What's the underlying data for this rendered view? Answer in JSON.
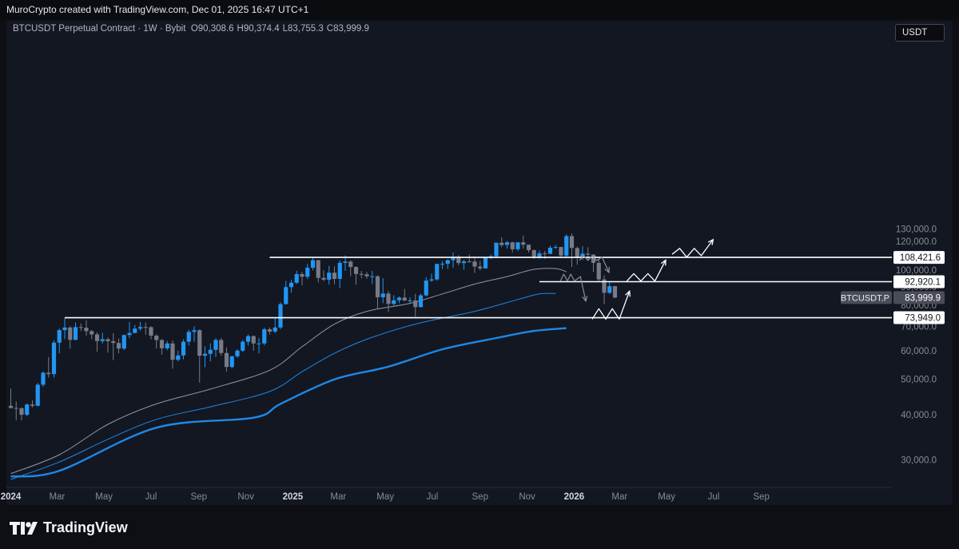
{
  "header": {
    "credit": "MuroCrypto created with TradingView.com, Dec 01, 2025 16:47 UTC+1"
  },
  "legend": {
    "symbol": "BTCUSDT Perpetual Contract · 1W · Bybit",
    "open": "O90,308.6",
    "high": "H90,374.4",
    "low": "L83,755.3",
    "close": "C83,999.9"
  },
  "unit_button": "USDT",
  "brand": "TradingView",
  "colors": {
    "bg": "#131722",
    "up": "#2196f3",
    "down": "#787b86",
    "ma_gray": "#9598a1",
    "ma_blue": "#1e88e5",
    "levels": "#ffffff"
  },
  "chart_data": {
    "type": "candlestick",
    "timeframe": "1W",
    "y_axis": {
      "ylim": [
        25000,
        137000
      ],
      "ticks": [
        "130,000.0",
        "120,000.0",
        "110,000.0",
        "100,000.0",
        "90,000.0",
        "80,000.0",
        "70,000.0",
        "60,000.0",
        "50,000.0",
        "40,000.0",
        "30,000.0"
      ],
      "tick_values": [
        130000,
        120000,
        110000,
        100000,
        90000,
        80000,
        70000,
        60000,
        50000,
        40000,
        30000
      ]
    },
    "x_axis": {
      "ticks": [
        "2024",
        "Mar",
        "May",
        "Jul",
        "Sep",
        "Nov",
        "2025",
        "Mar",
        "May",
        "Jul",
        "Sep",
        "Nov",
        "2026",
        "Mar",
        "May",
        "Jul",
        "Sep"
      ],
      "tick_dates": [
        "2024-01-01",
        "2024-03-01",
        "2024-05-01",
        "2024-07-01",
        "2024-09-01",
        "2024-11-01",
        "2025-01-01",
        "2025-03-01",
        "2025-05-01",
        "2025-07-01",
        "2025-09-01",
        "2025-11-01",
        "2026-01-01",
        "2026-03-01",
        "2026-05-01",
        "2026-07-01",
        "2026-09-01"
      ],
      "bold": [
        "2024",
        "2025",
        "2026"
      ]
    },
    "price_label": {
      "text": "BTCUSDT.P",
      "value": 83999.9,
      "value_text": "83,999.9"
    },
    "levels": [
      {
        "value": 108421.6,
        "label": "108,421.6",
        "from": "2024-12-02"
      },
      {
        "value": 92920.1,
        "label": "92,920.1",
        "from": "2025-11-17"
      },
      {
        "value": 73949.0,
        "label": "73,949.0",
        "from": "2024-03-11"
      }
    ],
    "candles_start": "2024-01-01",
    "candles": [
      [
        42283,
        47185,
        41550,
        41711
      ],
      [
        41711,
        43473,
        38600,
        41637
      ],
      [
        41637,
        41860,
        38555,
        39940
      ],
      [
        39940,
        42918,
        39560,
        42626
      ],
      [
        42626,
        43762,
        41880,
        42290
      ],
      [
        42290,
        48890,
        42165,
        48343
      ],
      [
        48343,
        52549,
        47672,
        52138
      ],
      [
        52138,
        57600,
        50600,
        51700
      ],
      [
        51700,
        64000,
        50560,
        63115
      ],
      [
        63115,
        69000,
        59000,
        68350
      ],
      [
        68350,
        73800,
        64500,
        69500
      ],
      [
        69500,
        70000,
        60760,
        64250
      ],
      [
        64250,
        71700,
        64100,
        69650
      ],
      [
        69650,
        71300,
        67900,
        69380
      ],
      [
        69380,
        72800,
        66000,
        67900
      ],
      [
        67900,
        68400,
        64500,
        66500
      ],
      [
        66500,
        67450,
        59600,
        63750
      ],
      [
        63750,
        67200,
        62800,
        64500
      ],
      [
        64500,
        65250,
        59200,
        63700
      ],
      [
        63700,
        67000,
        56500,
        63000
      ],
      [
        63000,
        64800,
        59000,
        60800
      ],
      [
        60800,
        66400,
        60200,
        66250
      ],
      [
        66250,
        71980,
        64900,
        67100
      ],
      [
        67100,
        70600,
        67000,
        69000
      ],
      [
        69000,
        72000,
        68100,
        69700
      ],
      [
        69700,
        71700,
        66400,
        69650
      ],
      [
        69650,
        70000,
        64500,
        66000
      ],
      [
        66000,
        66500,
        60800,
        64200
      ],
      [
        64200,
        64600,
        58500,
        60900
      ],
      [
        60900,
        63800,
        60200,
        62800
      ],
      [
        62800,
        64000,
        53500,
        56600
      ],
      [
        56600,
        60000,
        56000,
        58200
      ],
      [
        58200,
        64500,
        56800,
        63500
      ],
      [
        63500,
        68500,
        62000,
        67600
      ],
      [
        67600,
        70000,
        63500,
        68300
      ],
      [
        68300,
        68700,
        49000,
        58100
      ],
      [
        58100,
        61700,
        54000,
        58800
      ],
      [
        58800,
        62800,
        56100,
        60300
      ],
      [
        60300,
        64900,
        57700,
        64200
      ],
      [
        64200,
        65000,
        58100,
        59100
      ],
      [
        59100,
        61200,
        52500,
        54100
      ],
      [
        54100,
        58000,
        53600,
        57900
      ],
      [
        57900,
        60600,
        57300,
        60000
      ],
      [
        60000,
        64200,
        59400,
        63500
      ],
      [
        63500,
        66500,
        62000,
        65800
      ],
      [
        65800,
        66100,
        60000,
        62800
      ],
      [
        62800,
        65000,
        58900,
        62800
      ],
      [
        62800,
        69400,
        62000,
        68700
      ],
      [
        68700,
        69500,
        66500,
        67700
      ],
      [
        67700,
        73600,
        67100,
        69500
      ],
      [
        69500,
        81500,
        68800,
        80600
      ],
      [
        80600,
        93500,
        80400,
        89800
      ],
      [
        89800,
        94000,
        86600,
        92300
      ],
      [
        92300,
        99600,
        91600,
        97500
      ],
      [
        97500,
        98900,
        90800,
        95900
      ],
      [
        95900,
        104000,
        94500,
        101500
      ],
      [
        101500,
        108400,
        99800,
        106500
      ],
      [
        106500,
        106800,
        92500,
        95200
      ],
      [
        95200,
        99800,
        93200,
        94100
      ],
      [
        94100,
        102700,
        91200,
        98400
      ],
      [
        98400,
        102400,
        91500,
        94600
      ],
      [
        94600,
        106400,
        89200,
        104700
      ],
      [
        104700,
        109800,
        99500,
        105600
      ],
      [
        105600,
        106400,
        96200,
        102000
      ],
      [
        102000,
        102500,
        91200,
        97600
      ],
      [
        97600,
        99500,
        95000,
        97400
      ],
      [
        97400,
        98800,
        94700,
        96200
      ],
      [
        96200,
        99500,
        91500,
        96200
      ],
      [
        96200,
        96700,
        78200,
        84200
      ],
      [
        84200,
        95000,
        81100,
        86200
      ],
      [
        86200,
        87500,
        76600,
        80700
      ],
      [
        80700,
        85300,
        79900,
        82600
      ],
      [
        82600,
        84600,
        81100,
        84000
      ],
      [
        84000,
        88800,
        82000,
        82500
      ],
      [
        82500,
        84200,
        81200,
        82500
      ],
      [
        82500,
        86100,
        74500,
        79100
      ],
      [
        79100,
        86200,
        78900,
        85200
      ],
      [
        85200,
        95700,
        84600,
        93600
      ],
      [
        93600,
        97800,
        92800,
        94300
      ],
      [
        94300,
        104100,
        93500,
        104000
      ],
      [
        104000,
        105800,
        100700,
        104100
      ],
      [
        104100,
        107100,
        100800,
        106500
      ],
      [
        106500,
        111900,
        101400,
        108900
      ],
      [
        108900,
        110000,
        103100,
        104600
      ],
      [
        104600,
        106800,
        100300,
        105700
      ],
      [
        105700,
        110500,
        104900,
        105600
      ],
      [
        105600,
        108800,
        98200,
        102300
      ],
      [
        102300,
        106000,
        99800,
        101100
      ],
      [
        101100,
        108800,
        100900,
        108300
      ],
      [
        108300,
        110500,
        107200,
        109200
      ],
      [
        109200,
        119000,
        108400,
        119000
      ],
      [
        119000,
        123200,
        115700,
        117300
      ],
      [
        117300,
        120200,
        114700,
        119300
      ],
      [
        119300,
        119700,
        111900,
        114200
      ],
      [
        114200,
        119300,
        112800,
        119300
      ],
      [
        119300,
        124500,
        114600,
        117500
      ],
      [
        117500,
        117600,
        111800,
        113500
      ],
      [
        113500,
        114000,
        107300,
        108300
      ],
      [
        108300,
        113400,
        107300,
        111200
      ],
      [
        111200,
        112900,
        107300,
        110900
      ],
      [
        110900,
        116800,
        110700,
        115300
      ],
      [
        115300,
        117300,
        114400,
        115800
      ],
      [
        115800,
        116000,
        108700,
        109700
      ],
      [
        109700,
        125600,
        108600,
        124100
      ],
      [
        124100,
        126200,
        102000,
        115100
      ],
      [
        115100,
        116100,
        103500,
        108600
      ],
      [
        108600,
        116400,
        106600,
        111000
      ],
      [
        111000,
        115600,
        106300,
        110300
      ],
      [
        110300,
        110600,
        98900,
        104700
      ],
      [
        104700,
        107500,
        93000,
        94300
      ],
      [
        94300,
        96800,
        80600,
        86600
      ],
      [
        86600,
        93100,
        85900,
        90300
      ],
      [
        90300,
        90400,
        83755,
        84000
      ]
    ],
    "ma_gray": [
      [
        0,
        27500
      ],
      [
        9,
        31000
      ],
      [
        18,
        37600
      ],
      [
        27,
        42800
      ],
      [
        37,
        47000
      ],
      [
        48,
        53000
      ],
      [
        54,
        61500
      ],
      [
        60,
        71000
      ],
      [
        66,
        77000
      ],
      [
        74,
        81000
      ],
      [
        80,
        86000
      ],
      [
        86,
        91500
      ],
      [
        92,
        96000
      ],
      [
        97,
        100500
      ],
      [
        101,
        101000
      ],
      [
        103,
        99000
      ]
    ],
    "ma_blue": [
      [
        0,
        26500
      ],
      [
        9,
        29600
      ],
      [
        18,
        34200
      ],
      [
        27,
        38800
      ],
      [
        37,
        42000
      ],
      [
        48,
        46300
      ],
      [
        54,
        52500
      ],
      [
        60,
        59000
      ],
      [
        66,
        64500
      ],
      [
        75,
        71000
      ],
      [
        86,
        77000
      ],
      [
        94,
        83000
      ],
      [
        98,
        86000
      ],
      [
        101,
        86200
      ]
    ],
    "ma_blue_thick": [
      [
        0,
        27000
      ],
      [
        9,
        28000
      ],
      [
        27,
        36800
      ],
      [
        45,
        39200
      ],
      [
        50,
        42800
      ],
      [
        60,
        50000
      ],
      [
        70,
        54200
      ],
      [
        80,
        60500
      ],
      [
        90,
        65000
      ],
      [
        97,
        68000
      ],
      [
        103,
        69200
      ]
    ],
    "paths_white": [
      [
        [
          107.8,
          73300
        ],
        [
          109.0,
          78300
        ],
        [
          110.3,
          73300
        ],
        [
          111.5,
          78300
        ],
        [
          112.8,
          73300
        ],
        [
          114.7,
          87500
        ]
      ],
      [
        [
          114.2,
          93300
        ],
        [
          115.5,
          97800
        ],
        [
          116.8,
          93300
        ],
        [
          118.1,
          97800
        ],
        [
          119.4,
          93300
        ],
        [
          121.4,
          106600
        ]
      ],
      [
        [
          122.6,
          110600
        ],
        [
          124.0,
          114800
        ],
        [
          125.3,
          108600
        ],
        [
          126.7,
          114800
        ],
        [
          128.0,
          109600
        ],
        [
          130.2,
          121400
        ]
      ]
    ],
    "paths_gray": [
      [
        [
          101.9,
          93400
        ],
        [
          102.5,
          97500
        ],
        [
          103.2,
          93400
        ],
        [
          103.8,
          97500
        ],
        [
          104.5,
          93400
        ],
        [
          105.6,
          96000
        ],
        [
          106.6,
          82100
        ]
      ],
      [
        [
          105.4,
          106300
        ],
        [
          106.2,
          109500
        ],
        [
          107.0,
          106300
        ],
        [
          107.8,
          109500
        ],
        [
          108.6,
          106300
        ],
        [
          109.6,
          108500
        ],
        [
          110.9,
          98500
        ]
      ]
    ]
  }
}
